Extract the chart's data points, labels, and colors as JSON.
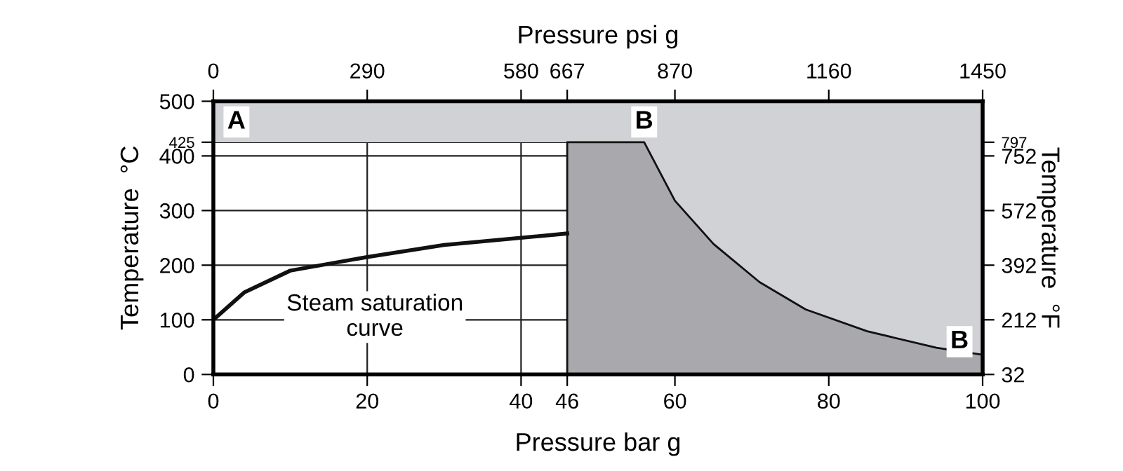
{
  "chart_data": {
    "type": "area",
    "xlabel": "Pressure bar g",
    "x2label": "Pressure psi g",
    "ylabel": "Temperature  °C",
    "y2label": "Temperature  °F",
    "xlim": [
      0,
      100
    ],
    "xticks": [
      0,
      20,
      40,
      46,
      60,
      80,
      100
    ],
    "x2lim": [
      0,
      1450
    ],
    "x2ticks": [
      0,
      290,
      580,
      667,
      870,
      1160,
      1450
    ],
    "ylim": [
      0,
      500
    ],
    "yticks": [
      0,
      100,
      200,
      300,
      400,
      425,
      500
    ],
    "y2lim": [
      32,
      932
    ],
    "y2ticks": [
      32,
      212,
      392,
      572,
      752,
      797
    ],
    "grid": true,
    "bands": [
      {
        "axis": "y",
        "from": 425,
        "to": 500,
        "color": "#d1d2d6"
      },
      {
        "axis": "x",
        "from": 46,
        "to": 100,
        "color": "#d1d2d6"
      }
    ],
    "series": [
      {
        "color": "#a9a9ad",
        "x": [
          46,
          46,
          56,
          60,
          65,
          71,
          77,
          85,
          94,
          100,
          100
        ],
        "values": [
          0,
          425,
          425,
          318,
          239,
          169,
          119,
          79,
          49,
          36,
          0
        ]
      },
      {
        "type": "line",
        "color": "#111111",
        "x": [
          0,
          4,
          10,
          20,
          30,
          46
        ],
        "values": [
          100,
          150,
          190,
          215,
          237,
          258
        ]
      }
    ],
    "annotations": [
      {
        "text": "A",
        "x": 3,
        "y": 462
      },
      {
        "text": "B",
        "x": 56,
        "y": 462
      },
      {
        "text": "B",
        "x": 97,
        "y": 60
      },
      {
        "text": "Steam saturation curve",
        "x": 20,
        "y": 215
      }
    ]
  }
}
